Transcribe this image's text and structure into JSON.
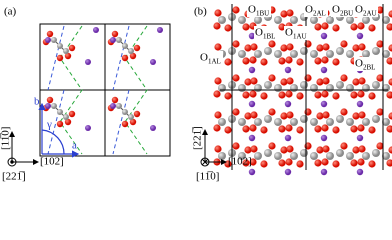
{
  "panel_a": {
    "label": "(a)",
    "lattice_b": "b",
    "angle": "γ",
    "lattice_a": "a",
    "axis_vertical": "[11̅0]",
    "axis_horizontal": "[102]",
    "axis_out": "[221̅]"
  },
  "panel_b": {
    "label": "(b)",
    "axis_vertical": "[221̅]",
    "axis_horizontal": "[102]",
    "axis_in": "[11̅0]",
    "atoms": [
      {
        "base": "O",
        "sub": "1BU"
      },
      {
        "base": "O",
        "sub": "1BL"
      },
      {
        "base": "O",
        "sub": "1AU"
      },
      {
        "base": "O",
        "sub": "1AL"
      },
      {
        "base": "O",
        "sub": "2AL"
      },
      {
        "base": "O",
        "sub": "2BU"
      },
      {
        "base": "O",
        "sub": "2AU"
      },
      {
        "base": "O",
        "sub": "2BL"
      }
    ]
  }
}
